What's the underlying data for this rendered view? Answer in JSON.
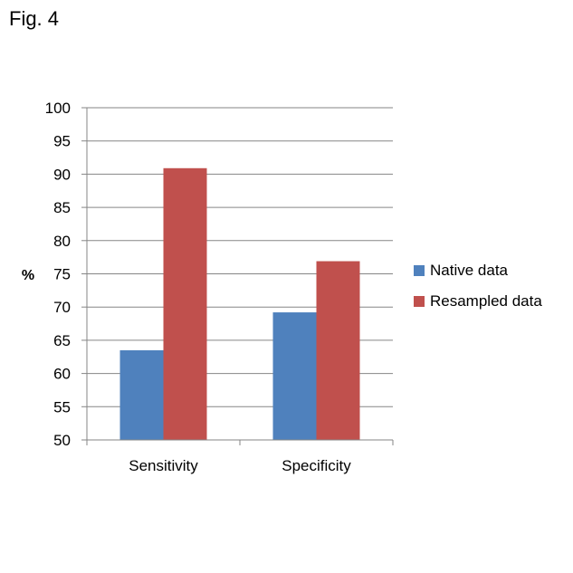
{
  "figure_label": "Fig. 4",
  "chart_data": {
    "type": "bar",
    "title": "",
    "xlabel": "",
    "ylabel": "%",
    "ylim": [
      50,
      100
    ],
    "yticks": [
      50,
      55,
      60,
      65,
      70,
      75,
      80,
      85,
      90,
      95,
      100
    ],
    "grid": true,
    "legend_position": "right",
    "categories": [
      "Sensitivity",
      "Specificity"
    ],
    "series": [
      {
        "name": "Native data",
        "color": "#4f81bd",
        "values": [
          63.5,
          69.2
        ]
      },
      {
        "name": "Resampled data",
        "color": "#c0504d",
        "values": [
          90.9,
          76.9
        ]
      }
    ]
  }
}
